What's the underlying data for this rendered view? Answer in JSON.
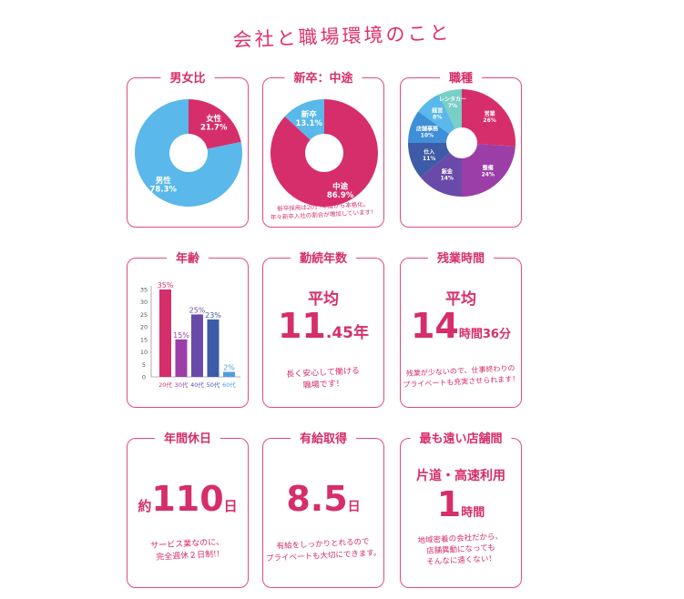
{
  "page": {
    "title": "会社と職場環境のこと"
  },
  "cards": {
    "gender": {
      "title": "男女比"
    },
    "hiring": {
      "title": "新卒：中途",
      "note_line1": "新卒採用は2017年度から本格化。",
      "note_line2": "年々新卒入社の割合が増加しています！"
    },
    "jobs": {
      "title": "職種"
    },
    "age": {
      "title": "年齢"
    },
    "tenure": {
      "title": "勤続年数",
      "label": "平均",
      "value": "11",
      "decimal": ".45",
      "unit": "年",
      "note_line1": "長く安心して働ける",
      "note_line2": "職場です！"
    },
    "overtime": {
      "title": "残業時間",
      "label": "平均",
      "value": "14",
      "unit": "時間",
      "minutes": "36",
      "minutes_unit": "分",
      "note_line1": "残業が少ないので、仕事終わりの",
      "note_line2": "プライベートも充実させられます！"
    },
    "holidays": {
      "title": "年間休日",
      "prefix": "約",
      "value": "110",
      "unit": "日",
      "note_line1": "サービス業なのに、",
      "note_line2": "完全週休２日制!!"
    },
    "paid_leave": {
      "title": "有給取得",
      "value": "8.5",
      "unit": "日",
      "note_line1": "有給をしっかりとれるので",
      "note_line2": "プライベートも大切にできます。"
    },
    "distance": {
      "title": "最も遠い店舗間",
      "label": "片道・高速利用",
      "value": "1",
      "unit": "時間",
      "note_line1": "地域密着の会社だから、",
      "note_line2": "店舗異動になっても",
      "note_line3": "そんなに遠くない！"
    }
  },
  "colors": {
    "pink": "#d62e6a",
    "light_blue": "#5ab8ea",
    "teal": "#78cfc6",
    "blue": "#3f8fd8",
    "purple": "#9c3ea8",
    "violet": "#6a4aa8",
    "navy": "#3d5ba6",
    "age_blue": "#4f9fdc"
  },
  "chart_data": [
    {
      "type": "pie",
      "title": "男女比",
      "slices": [
        {
          "label": "女性",
          "value": 21.7,
          "value_label": "21.7%",
          "color": "#d62e6a"
        },
        {
          "label": "男性",
          "value": 78.3,
          "value_label": "78.3%",
          "color": "#5ab8ea"
        }
      ]
    },
    {
      "type": "pie",
      "title": "新卒：中途",
      "slices": [
        {
          "label": "新卒",
          "value": 13.1,
          "value_label": "13.1%",
          "color": "#5ab8ea"
        },
        {
          "label": "中途",
          "value": 86.9,
          "value_label": "86.9%",
          "color": "#d62e6a"
        }
      ]
    },
    {
      "type": "pie",
      "title": "職種",
      "slices": [
        {
          "label": "営業",
          "value": 26,
          "value_label": "26%",
          "color": "#d62e6a"
        },
        {
          "label": "整備",
          "value": 24,
          "value_label": "24%",
          "color": "#9c3ea8"
        },
        {
          "label": "鈑金",
          "value": 14,
          "value_label": "14%",
          "color": "#6a4aa8"
        },
        {
          "label": "仕入",
          "value": 11,
          "value_label": "11%",
          "color": "#3d5ba6"
        },
        {
          "label": "店舗事務",
          "value": 10,
          "value_label": "10%",
          "color": "#3f8fd8"
        },
        {
          "label": "経営",
          "value": 8,
          "value_label": "8%",
          "color": "#5ab8ea"
        },
        {
          "label": "レンタカー",
          "value": 7,
          "value_label": "7%",
          "color": "#78cfc6"
        }
      ]
    },
    {
      "type": "bar",
      "title": "年齢",
      "categories": [
        "20代",
        "30代",
        "40代",
        "50代",
        "60代"
      ],
      "values": [
        35,
        15,
        25,
        23,
        2
      ],
      "value_labels": [
        "35%",
        "15%",
        "25%",
        "23%",
        "2%"
      ],
      "colors": [
        "#d62e6a",
        "#9c3ea8",
        "#6a4aa8",
        "#3d5ba6",
        "#4f9fdc"
      ],
      "ylim": [
        0,
        35
      ],
      "yticks": [
        "0",
        "5",
        "10",
        "15",
        "20",
        "25",
        "30",
        "35"
      ],
      "grid": false
    }
  ]
}
